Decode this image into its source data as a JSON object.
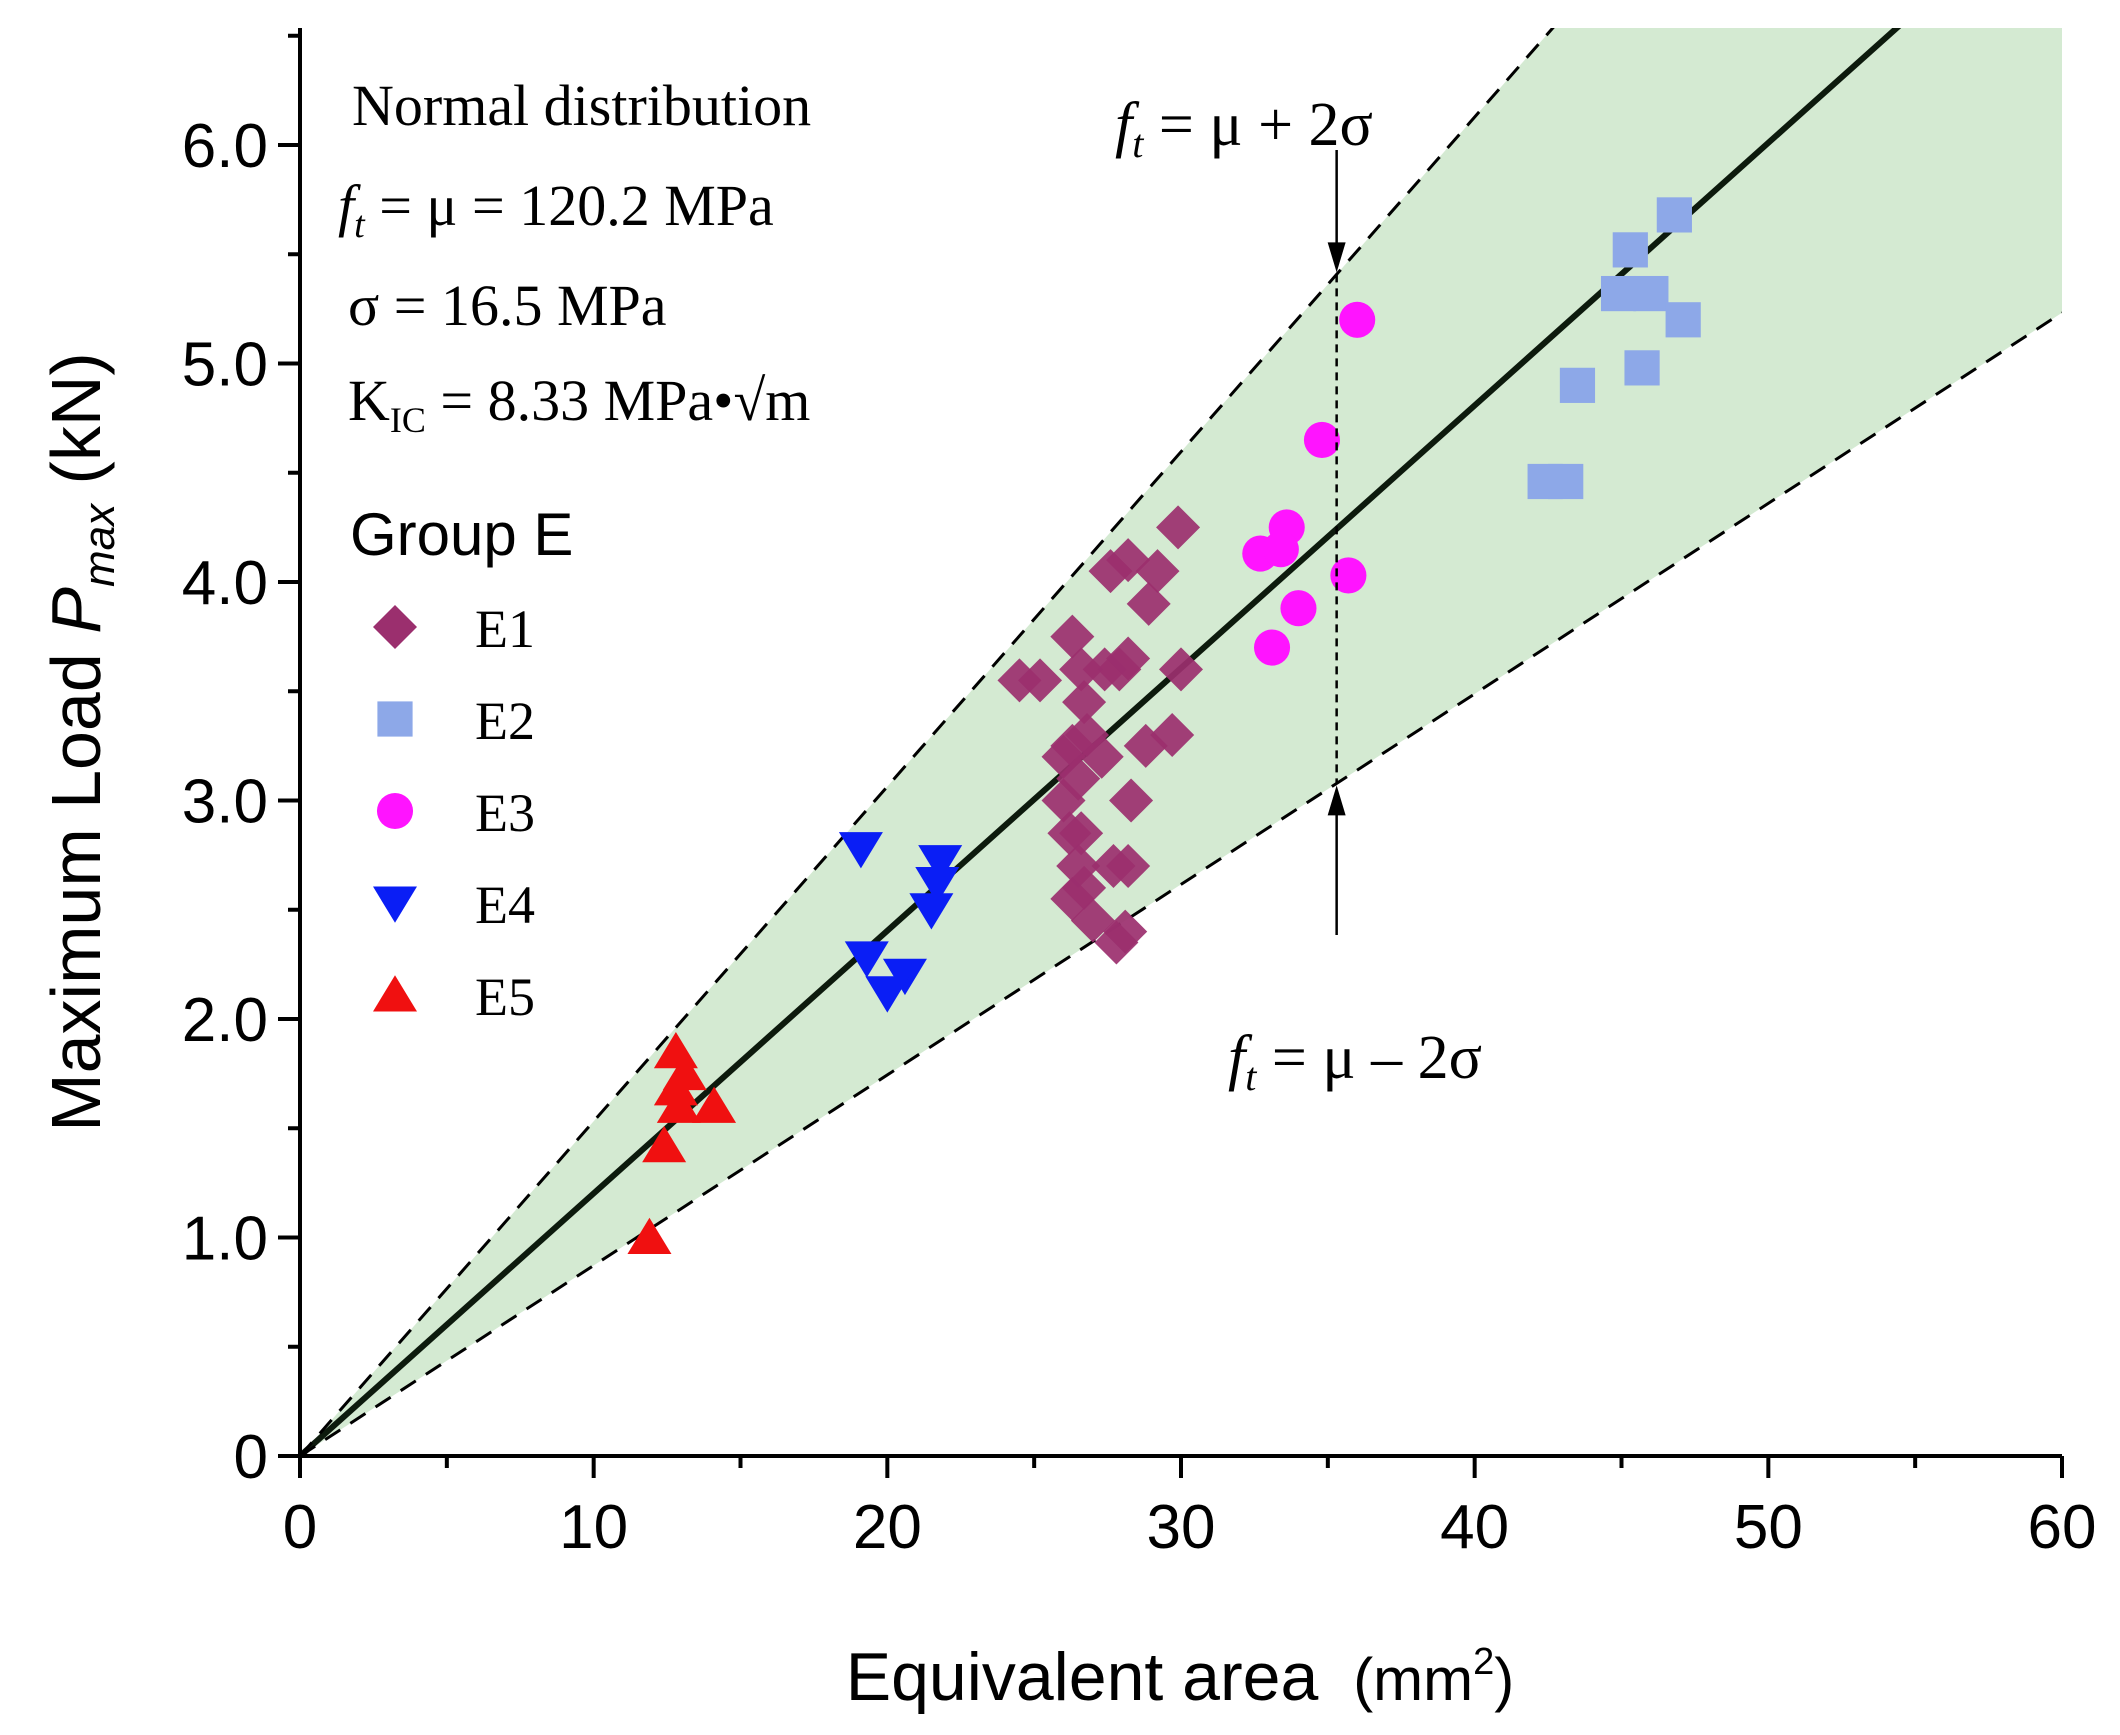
{
  "chart_data": {
    "type": "scatter",
    "xlabel": "Equivalent area",
    "xlabel_unit_base": "(mm",
    "xlabel_unit_sup": "2",
    "xlabel_unit_end": ")",
    "ylabel_prefix": "Maximum Load",
    "ylabel_var": "P",
    "ylabel_sub": "max",
    "ylabel_unit": "(kN)",
    "xlim": [
      0,
      60
    ],
    "ylim": [
      0,
      6.5
    ],
    "x_ticks": [
      0,
      10,
      20,
      30,
      40,
      50,
      60
    ],
    "x_tick_labels": [
      "0",
      "10",
      "20",
      "30",
      "40",
      "50",
      "60"
    ],
    "y_ticks": [
      0,
      1,
      2,
      3,
      4,
      5,
      6
    ],
    "y_tick_labels": [
      "0",
      "1.0",
      "2.0",
      "3.0",
      "4.0",
      "5.0",
      "6.0"
    ],
    "annotations": {
      "title_line": "Normal distribution",
      "ft_label_var": "f",
      "ft_label_sub": "t",
      "mean_line_rest": " = μ =  120.2 MPa",
      "sigma_line": "σ = 16.5 MPa",
      "kic_prefix": "K",
      "kic_sub": "IC",
      "kic_rest": " = 8.33 MPa•√m",
      "upper_bound_rest": " = μ + 2σ",
      "lower_bound_rest": " = μ – 2σ"
    },
    "fit_lines": [
      {
        "name": "mean",
        "slope": 0.1202,
        "style": "solid"
      },
      {
        "name": "mu_plus_2sigma",
        "slope": 0.1532,
        "style": "dashed"
      },
      {
        "name": "mu_minus_2sigma",
        "slope": 0.0872,
        "style": "dashed"
      }
    ],
    "band_color": "#d4ead2",
    "legend_title": "Group E",
    "series": [
      {
        "name": "E1",
        "marker": "diamond",
        "color": "#9b2f6e",
        "points": [
          [
            24.5,
            3.55
          ],
          [
            25.2,
            3.55
          ],
          [
            26.3,
            3.75
          ],
          [
            27.6,
            4.05
          ],
          [
            28.2,
            4.1
          ],
          [
            29.2,
            4.05
          ],
          [
            29.9,
            4.25
          ],
          [
            28.9,
            3.9
          ],
          [
            26.6,
            3.6
          ],
          [
            27.4,
            3.6
          ],
          [
            27.9,
            3.6
          ],
          [
            28.2,
            3.65
          ],
          [
            30.0,
            3.6
          ],
          [
            26.7,
            3.45
          ],
          [
            26.0,
            3.2
          ],
          [
            26.3,
            3.25
          ],
          [
            26.8,
            3.3
          ],
          [
            27.3,
            3.2
          ],
          [
            28.8,
            3.25
          ],
          [
            29.7,
            3.3
          ],
          [
            26.0,
            3.0
          ],
          [
            26.5,
            3.1
          ],
          [
            28.3,
            3.0
          ],
          [
            26.2,
            2.85
          ],
          [
            26.6,
            2.85
          ],
          [
            26.5,
            2.7
          ],
          [
            26.3,
            2.55
          ],
          [
            26.7,
            2.6
          ],
          [
            27.0,
            2.45
          ],
          [
            27.7,
            2.7
          ],
          [
            28.2,
            2.7
          ],
          [
            27.8,
            2.35
          ],
          [
            28.1,
            2.4
          ]
        ]
      },
      {
        "name": "E2",
        "marker": "square",
        "color": "#8da8e8",
        "points": [
          [
            46.8,
            5.68
          ],
          [
            45.3,
            5.52
          ],
          [
            44.9,
            5.32
          ],
          [
            46.0,
            5.32
          ],
          [
            47.1,
            5.2
          ],
          [
            45.7,
            4.98
          ],
          [
            43.5,
            4.9
          ],
          [
            42.4,
            4.46
          ],
          [
            43.1,
            4.46
          ]
        ]
      },
      {
        "name": "E3",
        "marker": "circle",
        "color": "#ff14ff",
        "points": [
          [
            36.0,
            5.2
          ],
          [
            34.8,
            4.65
          ],
          [
            33.6,
            4.25
          ],
          [
            32.7,
            4.13
          ],
          [
            33.4,
            4.15
          ],
          [
            35.7,
            4.03
          ],
          [
            34.0,
            3.88
          ],
          [
            33.1,
            3.7
          ]
        ]
      },
      {
        "name": "E4",
        "marker": "triangle-down",
        "color": "#0a1ef5",
        "points": [
          [
            19.1,
            2.78
          ],
          [
            21.8,
            2.72
          ],
          [
            21.7,
            2.62
          ],
          [
            21.5,
            2.5
          ],
          [
            19.3,
            2.28
          ],
          [
            20.6,
            2.2
          ],
          [
            20.0,
            2.12
          ]
        ]
      },
      {
        "name": "E5",
        "marker": "triangle-up",
        "color": "#f01010",
        "points": [
          [
            12.8,
            1.85
          ],
          [
            13.1,
            1.75
          ],
          [
            12.8,
            1.68
          ],
          [
            12.9,
            1.6
          ],
          [
            14.1,
            1.6
          ],
          [
            12.4,
            1.42
          ],
          [
            11.9,
            1.0
          ]
        ]
      }
    ]
  }
}
